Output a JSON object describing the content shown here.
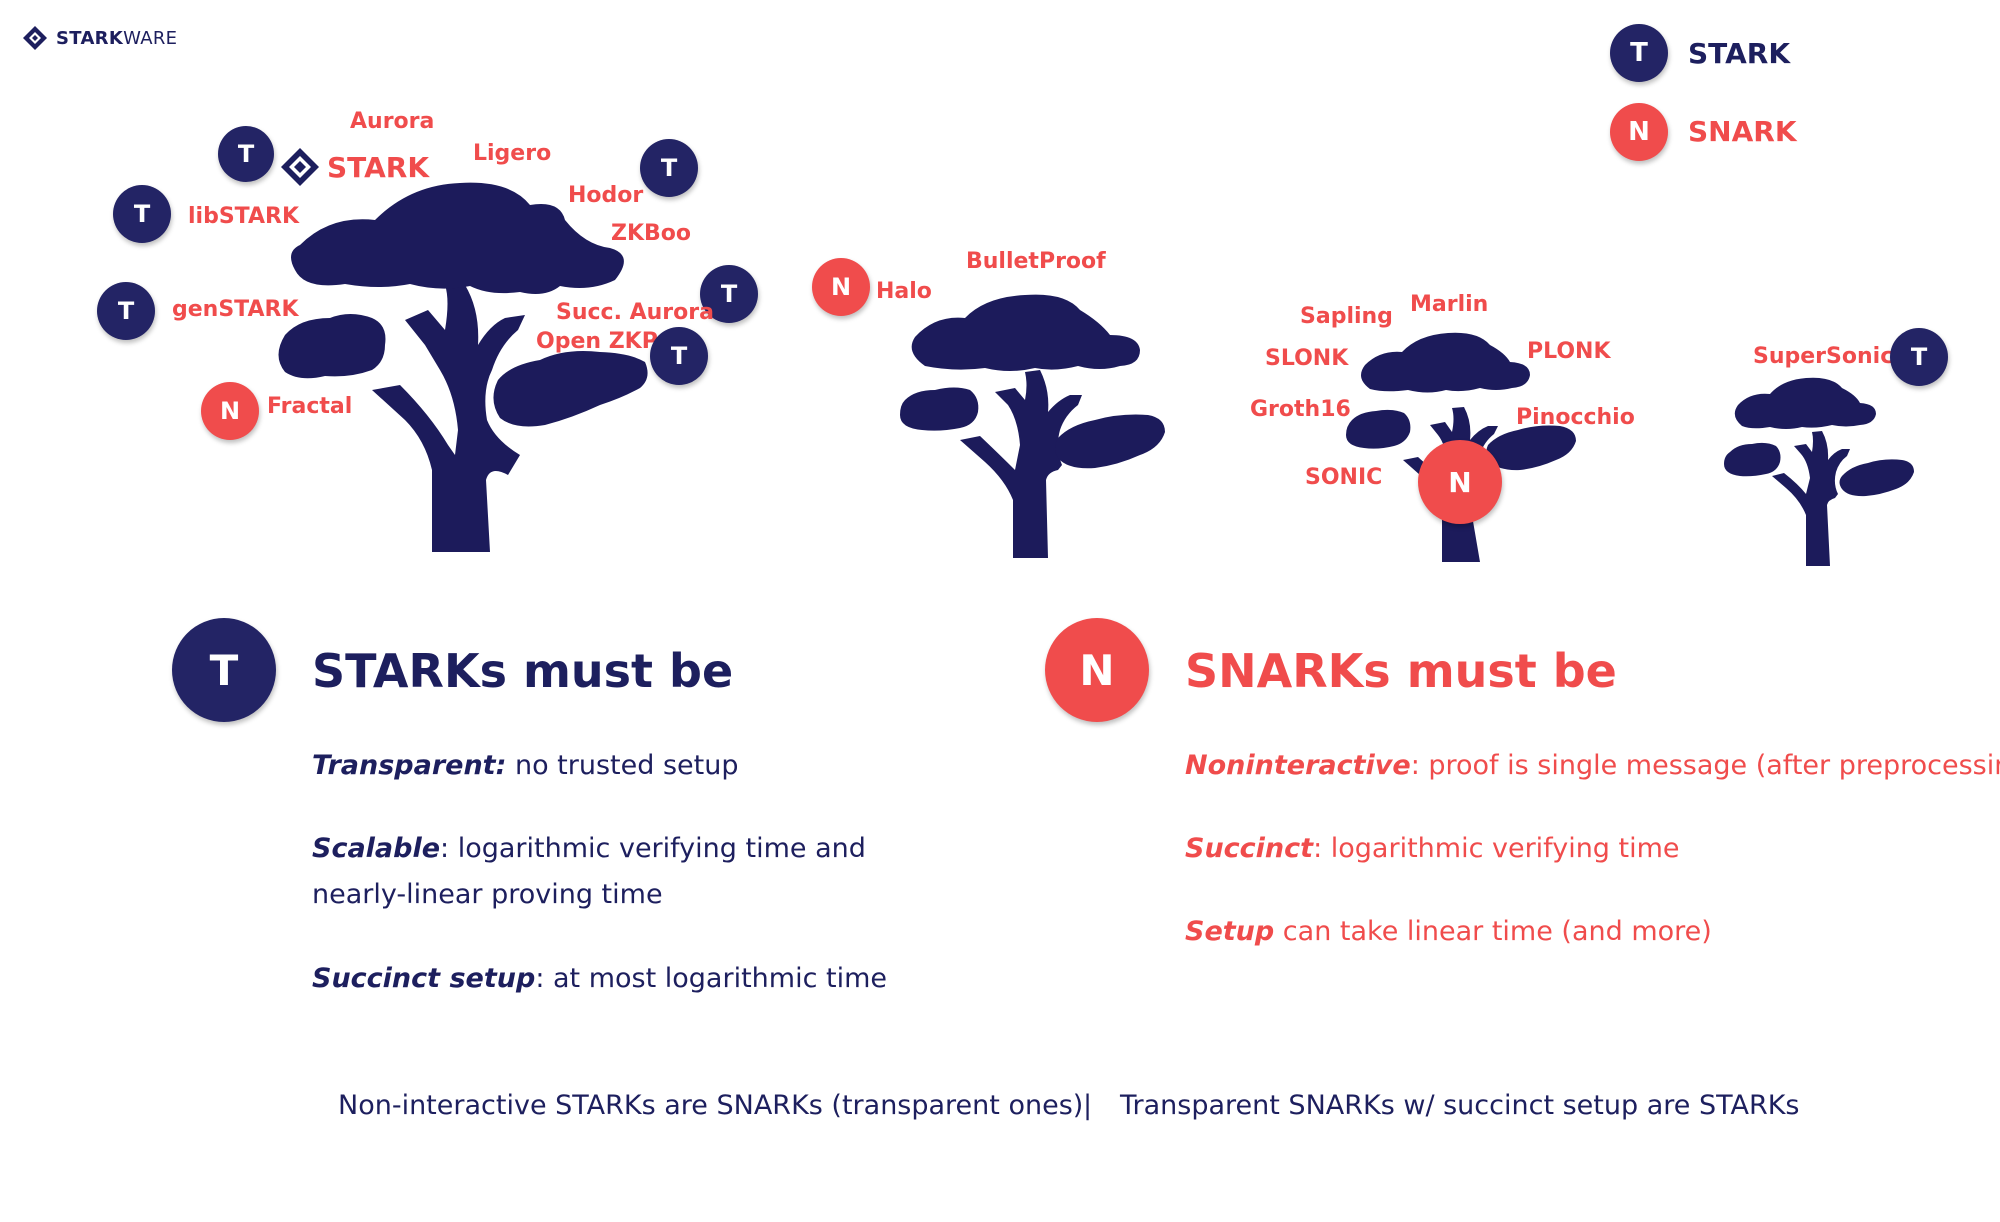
{
  "brand": {
    "strong": "STARK",
    "light": "WARE"
  },
  "legend": {
    "stark": {
      "badge": "T",
      "label": "STARK"
    },
    "snark": {
      "badge": "N",
      "label": "SNARK"
    }
  },
  "tree_labels": {
    "tree1": [
      "Aurora",
      "STARK",
      "Ligero",
      "Hodor",
      "ZKBoo",
      "libSTARK",
      "genSTARK",
      "Succ. Aurora",
      "Open ZKP",
      "Fractal"
    ],
    "tree2": [
      "BulletProof",
      "Halo"
    ],
    "tree3": [
      "Sapling",
      "Marlin",
      "SLONK",
      "PLONK",
      "Groth16",
      "Pinocchio",
      "SONIC"
    ],
    "tree4": [
      "SuperSonic"
    ]
  },
  "badges": {
    "t": "T",
    "n": "N"
  },
  "starks": {
    "badge": "T",
    "title": "STARKs must be",
    "items": [
      {
        "term": "Transparent:",
        "desc": " no trusted setup"
      },
      {
        "term": "Scalable",
        "desc": ": logarithmic verifying time and nearly-linear proving time"
      },
      {
        "term": "Succinct setup",
        "desc": ": at most logarithmic time"
      }
    ]
  },
  "snarks": {
    "badge": "N",
    "title": "SNARKs must be",
    "items": [
      {
        "term": "Noninteractive",
        "desc": ": proof is single message (after preprocessing)"
      },
      {
        "term": "Succinct",
        "desc": ": logarithmic verifying time"
      },
      {
        "term": "Setup",
        "desc": " can take linear time (and more)"
      }
    ]
  },
  "footer": {
    "left": "Non-interactive STARKs are SNARKs (transparent ones)",
    "separator": "|",
    "right": "Transparent SNARKs w/ succinct setup are STARKs"
  },
  "colors": {
    "navy": "#1d1f5e",
    "badge_navy": "#232465",
    "red": "#f04c4c",
    "tree": "#1c1b5b"
  }
}
